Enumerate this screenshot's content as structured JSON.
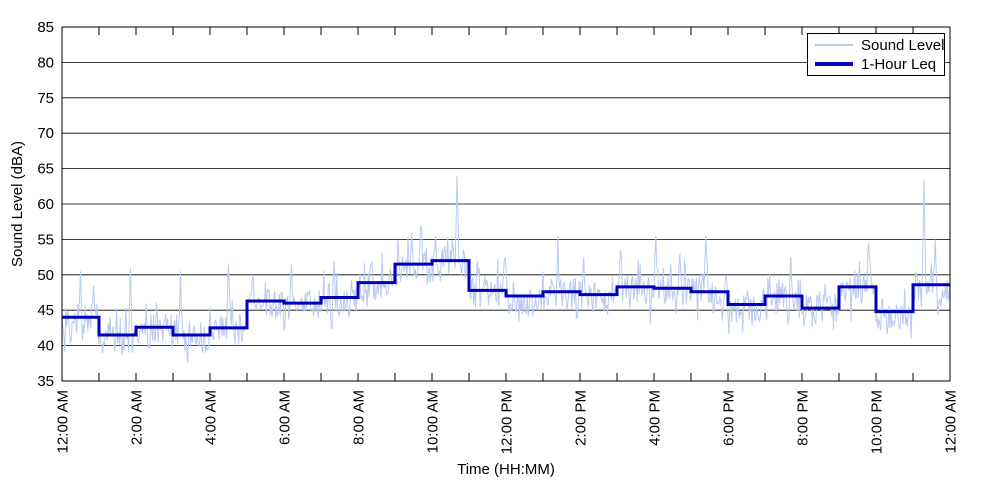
{
  "chart_data": {
    "type": "line",
    "title": "",
    "xlabel": "Time (HH:MM)",
    "ylabel": "Sound Level (dBA)",
    "ylim": [
      35,
      85
    ],
    "ytick_step": 5,
    "x_hours": [
      0,
      24
    ],
    "xtick_major_step_hours": 2,
    "xtick_minor_step_hours": 1,
    "xtick_labels": [
      "12:00 AM",
      "2:00 AM",
      "4:00 AM",
      "6:00 AM",
      "8:00 AM",
      "10:00 AM",
      "12:00 PM",
      "2:00 PM",
      "4:00 PM",
      "6:00 PM",
      "8:00 PM",
      "10:00 PM",
      "12:00 AM"
    ],
    "grid": "horizontal-only",
    "legend_position": "top-right-inside",
    "series": [
      {
        "name": "Sound Level",
        "type": "noisy-minute-data",
        "color": "#b9c9f0",
        "width": 1,
        "synth": {
          "seed": 42,
          "step_hours": 0.025,
          "band_below_leq": 2.6,
          "band_width": 4.6,
          "up_spike_prob": 0.18,
          "up_spike_max": 3.2,
          "down_spike_prob": 0.18,
          "down_spike_max": 2.8,
          "floor_dba": 36.8
        },
        "peaks_t_hours_v_dba": [
          [
            0.5,
            50.5
          ],
          [
            0.85,
            48.5
          ],
          [
            1.85,
            51
          ],
          [
            3.2,
            50.5
          ],
          [
            4.5,
            51.5
          ],
          [
            5.15,
            50
          ],
          [
            6.2,
            51.5
          ],
          [
            7.35,
            52
          ],
          [
            8.35,
            51.5
          ],
          [
            9.45,
            56
          ],
          [
            9.7,
            57
          ],
          [
            10.1,
            55.5
          ],
          [
            10.68,
            64
          ],
          [
            11.97,
            52.5
          ],
          [
            13.4,
            55.5
          ],
          [
            14.1,
            52.5
          ],
          [
            15.1,
            53.5
          ],
          [
            16.05,
            55.5
          ],
          [
            16.7,
            53
          ],
          [
            17.4,
            55.5
          ],
          [
            19.7,
            52.5
          ],
          [
            21.8,
            54.5
          ],
          [
            23.3,
            63.5
          ],
          [
            23.6,
            55
          ]
        ]
      },
      {
        "name": "1-Hour Leq",
        "type": "hourly-step",
        "color": "#0000bb",
        "width": 3,
        "hours": [
          0,
          1,
          2,
          3,
          4,
          5,
          6,
          7,
          8,
          9,
          10,
          11,
          12,
          13,
          14,
          15,
          16,
          17,
          18,
          19,
          20,
          21,
          22,
          23
        ],
        "values": [
          44.0,
          41.5,
          42.6,
          41.5,
          42.5,
          46.3,
          46.0,
          46.8,
          48.9,
          51.5,
          52.0,
          47.8,
          47.0,
          47.6,
          47.2,
          48.3,
          48.1,
          47.6,
          45.8,
          47.0,
          45.3,
          48.3,
          44.8,
          48.6
        ]
      }
    ]
  }
}
